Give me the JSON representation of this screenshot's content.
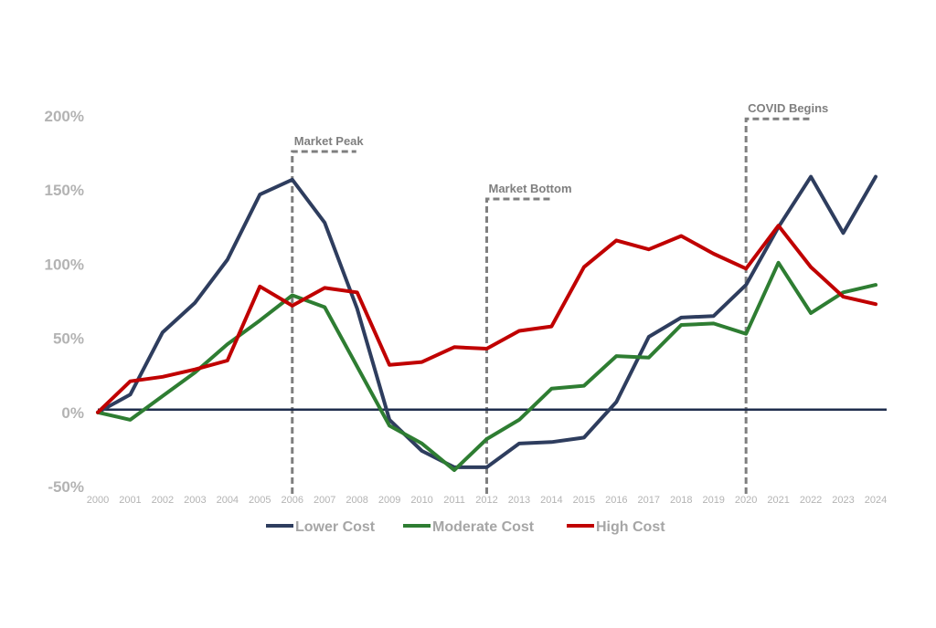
{
  "chart_data": {
    "type": "line",
    "title": "",
    "xlabel": "",
    "ylabel": "",
    "x": [
      "2000",
      "2001",
      "2002",
      "2003",
      "2004",
      "2005",
      "2006",
      "2007",
      "2008",
      "2009",
      "2010",
      "2011",
      "2012",
      "2013",
      "2014",
      "2015",
      "2016",
      "2017",
      "2018",
      "2019",
      "2020",
      "2021",
      "2022",
      "2023",
      "2024"
    ],
    "ylim": [
      -50,
      200
    ],
    "yticks": [
      -50,
      0,
      50,
      100,
      150,
      200
    ],
    "ytick_labels": [
      "-50%",
      "0%",
      "50%",
      "100%",
      "150%",
      "200%"
    ],
    "grid": false,
    "legend_position": "bottom",
    "colors": {
      "zero_line": "#1f2d4d",
      "annotation": "#7f7f7f"
    },
    "series": [
      {
        "name": "Lower Cost",
        "color": "#2e3d5e",
        "values": [
          0,
          12,
          54,
          74,
          103,
          147,
          157,
          128,
          70,
          -5,
          -26,
          -37,
          -37,
          -21,
          -20,
          -17,
          7,
          51,
          64,
          65,
          86,
          125,
          159,
          121,
          159
        ]
      },
      {
        "name": "Moderate Cost",
        "color": "#2e7d32",
        "values": [
          0,
          -5,
          11,
          27,
          46,
          62,
          79,
          71,
          31,
          -9,
          -21,
          -39,
          -18,
          -5,
          16,
          18,
          38,
          37,
          59,
          60,
          53,
          101,
          67,
          81,
          86
        ]
      },
      {
        "name": "High Cost",
        "color": "#c00000",
        "values": [
          0,
          21,
          24,
          29,
          35,
          85,
          72,
          84,
          81,
          32,
          34,
          44,
          43,
          55,
          58,
          98,
          116,
          110,
          119,
          107,
          97,
          126,
          98,
          78,
          73
        ]
      }
    ],
    "annotations": [
      {
        "label": "Market Peak",
        "x": "2006",
        "y": 176
      },
      {
        "label": "Market Bottom",
        "x": "2012",
        "y": 144
      },
      {
        "label": "COVID Begins",
        "x": "2020",
        "y": 198
      }
    ]
  }
}
